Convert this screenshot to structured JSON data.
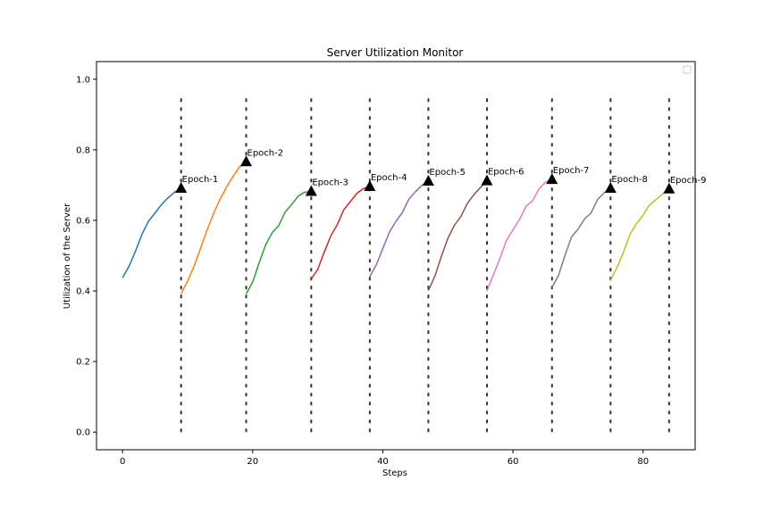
{
  "chart_data": {
    "type": "line",
    "title": "Server Utilization Monitor",
    "xlabel": "Steps",
    "ylabel": "Utilization of the Server",
    "xlim": [
      -4,
      88
    ],
    "ylim": [
      -0.05,
      1.05
    ],
    "xticks": [
      0,
      20,
      40,
      60,
      80
    ],
    "yticks": [
      0.0,
      0.2,
      0.4,
      0.6,
      0.8,
      1.0
    ],
    "grid": false,
    "legend": "upper-right (empty)",
    "epoch_line_range": [
      0.0,
      0.96
    ],
    "series": [
      {
        "color": "#1f77b4",
        "x": [
          0,
          1,
          2,
          3,
          4,
          5,
          6,
          7,
          8,
          9
        ],
        "y": [
          0.437,
          0.47,
          0.513,
          0.561,
          0.598,
          0.621,
          0.645,
          0.664,
          0.68,
          0.691
        ]
      },
      {
        "color": "#ff7f0e",
        "x": [
          9,
          10,
          11,
          12,
          13,
          14,
          15,
          16,
          17,
          18,
          19
        ],
        "y": [
          0.392,
          0.428,
          0.47,
          0.521,
          0.573,
          0.62,
          0.66,
          0.695,
          0.725,
          0.752,
          0.766
        ]
      },
      {
        "color": "#2ca02c",
        "x": [
          19,
          20,
          21,
          22,
          23,
          24,
          25,
          26,
          27,
          28,
          29
        ],
        "y": [
          0.392,
          0.425,
          0.48,
          0.531,
          0.565,
          0.585,
          0.624,
          0.645,
          0.669,
          0.68,
          0.682
        ]
      },
      {
        "color": "#d62728",
        "x": [
          29,
          30,
          31,
          32,
          33,
          34,
          35,
          36,
          37,
          38
        ],
        "y": [
          0.434,
          0.461,
          0.51,
          0.556,
          0.588,
          0.63,
          0.653,
          0.676,
          0.69,
          0.696
        ]
      },
      {
        "color": "#9467bd",
        "x": [
          38,
          39,
          40,
          41,
          42,
          43,
          44,
          45,
          46,
          47
        ],
        "y": [
          0.441,
          0.474,
          0.52,
          0.566,
          0.597,
          0.622,
          0.66,
          0.681,
          0.699,
          0.711
        ]
      },
      {
        "color": "#8c564b",
        "x": [
          47,
          48,
          49,
          50,
          51,
          52,
          53,
          54,
          55,
          56
        ],
        "y": [
          0.401,
          0.442,
          0.498,
          0.549,
          0.586,
          0.611,
          0.648,
          0.673,
          0.693,
          0.712
        ]
      },
      {
        "color": "#e377c2",
        "x": [
          56,
          57,
          58,
          59,
          60,
          61,
          62,
          63,
          64,
          65,
          66
        ],
        "y": [
          0.4,
          0.446,
          0.492,
          0.543,
          0.573,
          0.602,
          0.64,
          0.655,
          0.689,
          0.708,
          0.716
        ]
      },
      {
        "color": "#7f7f7f",
        "x": [
          66,
          67,
          68,
          69,
          70,
          71,
          72,
          73,
          74,
          75
        ],
        "y": [
          0.41,
          0.444,
          0.501,
          0.553,
          0.575,
          0.604,
          0.621,
          0.659,
          0.678,
          0.691
        ]
      },
      {
        "color": "#bcbd22",
        "x": [
          75,
          76,
          77,
          78,
          79,
          80,
          81,
          82,
          83,
          84
        ],
        "y": [
          0.431,
          0.467,
          0.51,
          0.561,
          0.591,
          0.615,
          0.644,
          0.659,
          0.675,
          0.689
        ]
      }
    ],
    "annotations": [
      {
        "label": "Epoch-1",
        "x": 9,
        "y": 0.691
      },
      {
        "label": "Epoch-2",
        "x": 19,
        "y": 0.766
      },
      {
        "label": "Epoch-3",
        "x": 29,
        "y": 0.682
      },
      {
        "label": "Epoch-4",
        "x": 38,
        "y": 0.696
      },
      {
        "label": "Epoch-5",
        "x": 47,
        "y": 0.711
      },
      {
        "label": "Epoch-6",
        "x": 56,
        "y": 0.712
      },
      {
        "label": "Epoch-7",
        "x": 66,
        "y": 0.716
      },
      {
        "label": "Epoch-8",
        "x": 75,
        "y": 0.691
      },
      {
        "label": "Epoch-9",
        "x": 84,
        "y": 0.689
      }
    ]
  }
}
